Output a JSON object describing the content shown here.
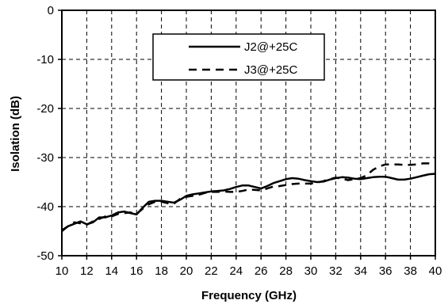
{
  "chart_data": {
    "type": "line",
    "title": "",
    "xlabel": "Frequency (GHz)",
    "ylabel": "Isolation (dB)",
    "xlim": [
      10,
      40
    ],
    "ylim": [
      -50,
      0
    ],
    "x_ticks": [
      "10",
      "12",
      "14",
      "16",
      "18",
      "20",
      "22",
      "24",
      "26",
      "28",
      "30",
      "32",
      "34",
      "36",
      "38",
      "40"
    ],
    "y_ticks": [
      "0",
      "-10",
      "-20",
      "-30",
      "-40",
      "-50"
    ],
    "grid": true,
    "legend_position": "top-center",
    "series": [
      {
        "name": "J2@+25C",
        "style": "solid",
        "color": "#000000",
        "x": [
          10,
          10.5,
          11,
          11.5,
          12,
          12.5,
          13,
          13.5,
          14,
          14.5,
          15,
          15.5,
          16,
          16.5,
          17,
          17.5,
          18,
          18.5,
          19,
          19.5,
          20,
          20.5,
          21,
          21.5,
          22,
          22.5,
          23,
          23.5,
          24,
          24.5,
          25,
          25.5,
          26,
          26.5,
          27,
          27.5,
          28,
          28.5,
          29,
          29.5,
          30,
          30.5,
          31,
          31.5,
          32,
          32.5,
          33,
          33.5,
          34,
          34.5,
          35,
          35.5,
          36,
          36.5,
          37,
          37.5,
          38,
          38.5,
          39,
          39.5,
          40
        ],
        "values": [
          -45.0,
          -44.0,
          -43.5,
          -43.0,
          -43.6,
          -43.2,
          -42.2,
          -42.2,
          -41.8,
          -41.2,
          -41.0,
          -41.3,
          -41.6,
          -40.2,
          -39.0,
          -38.8,
          -38.8,
          -39.0,
          -39.2,
          -38.6,
          -37.8,
          -37.5,
          -37.3,
          -37.1,
          -36.9,
          -36.8,
          -36.7,
          -36.4,
          -36.0,
          -35.7,
          -35.7,
          -36.0,
          -36.3,
          -35.8,
          -35.2,
          -34.8,
          -34.4,
          -34.2,
          -34.3,
          -34.6,
          -34.8,
          -35.0,
          -34.9,
          -34.5,
          -34.2,
          -34.0,
          -34.1,
          -34.3,
          -34.4,
          -34.2,
          -34.0,
          -33.9,
          -33.9,
          -34.2,
          -34.5,
          -34.5,
          -34.3,
          -34.0,
          -33.7,
          -33.4,
          -33.3
        ]
      },
      {
        "name": "J3@+25C",
        "style": "dashed",
        "color": "#000000",
        "x": [
          10,
          10.5,
          11,
          11.5,
          12,
          12.5,
          13,
          13.5,
          14,
          14.5,
          15,
          15.5,
          16,
          16.5,
          17,
          17.5,
          18,
          18.5,
          19,
          19.5,
          20,
          20.5,
          21,
          21.5,
          22,
          22.5,
          23,
          23.5,
          24,
          24.5,
          25,
          25.5,
          26,
          26.5,
          27,
          27.5,
          28,
          28.5,
          29,
          29.5,
          30,
          30.5,
          31,
          31.5,
          32,
          32.5,
          33,
          33.5,
          34,
          34.5,
          35,
          35.5,
          36,
          36.5,
          37,
          37.5,
          38,
          38.5,
          39,
          39.5,
          40
        ],
        "values": [
          -44.8,
          -44.0,
          -43.2,
          -43.4,
          -43.7,
          -43.0,
          -42.5,
          -42.0,
          -42.0,
          -41.5,
          -41.3,
          -41.2,
          -41.5,
          -40.4,
          -39.5,
          -39.0,
          -39.0,
          -39.3,
          -39.4,
          -38.4,
          -38.0,
          -37.8,
          -37.6,
          -37.2,
          -37.0,
          -37.0,
          -36.9,
          -37.0,
          -37.0,
          -36.8,
          -36.5,
          -36.6,
          -36.7,
          -36.3,
          -35.9,
          -35.8,
          -35.6,
          -35.4,
          -35.3,
          -35.3,
          -35.3,
          -35.1,
          -34.8,
          -34.4,
          -34.1,
          -34.3,
          -34.6,
          -34.4,
          -34.2,
          -33.6,
          -32.5,
          -31.8,
          -31.4,
          -31.4,
          -31.4,
          -31.5,
          -31.5,
          -31.4,
          -31.2,
          -31.2,
          -31.3
        ]
      }
    ]
  }
}
